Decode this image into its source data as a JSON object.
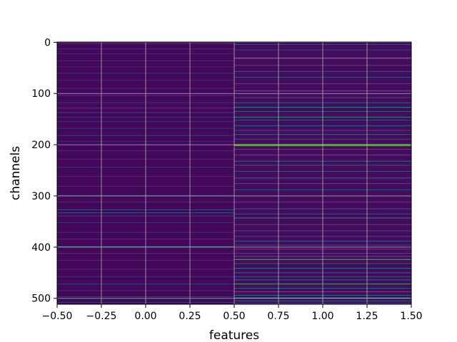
{
  "chart_data": {
    "type": "heatmap",
    "xlabel": "features",
    "ylabel": "channels",
    "xlim": [
      -0.5,
      1.5
    ],
    "ylim": [
      511.5,
      -0.5
    ],
    "rows": 512,
    "columns": [
      0,
      1
    ],
    "xticks": [
      -0.5,
      -0.25,
      0.0,
      0.25,
      0.5,
      0.75,
      1.0,
      1.25,
      1.5
    ],
    "xtick_labels": [
      "−0.50",
      "−0.25",
      "0.00",
      "0.25",
      "0.50",
      "0.75",
      "1.00",
      "1.25",
      "1.50"
    ],
    "yticks": [
      0,
      100,
      200,
      300,
      400,
      500
    ],
    "ytick_labels": [
      "0",
      "100",
      "200",
      "300",
      "400",
      "500"
    ],
    "grid": true,
    "colormap": "viridis",
    "colormap_stops": [
      "#440154",
      "#472d7b",
      "#3b528b",
      "#2c728e",
      "#21918c",
      "#28ae80",
      "#5ec962",
      "#addc30",
      "#fde725"
    ],
    "base_color": "#440154",
    "column_base_levels": [
      0.02,
      0.03
    ],
    "highlighted_rows": {
      "feature_0": [
        {
          "row": 3,
          "level": 0.18
        },
        {
          "row": 13,
          "level": 0.15
        },
        {
          "row": 22,
          "level": 0.14
        },
        {
          "row": 36,
          "level": 0.16
        },
        {
          "row": 48,
          "level": 0.13
        },
        {
          "row": 60,
          "level": 0.15
        },
        {
          "row": 74,
          "level": 0.12
        },
        {
          "row": 90,
          "level": 0.14
        },
        {
          "row": 104,
          "level": 0.2
        },
        {
          "row": 118,
          "level": 0.17
        },
        {
          "row": 128,
          "level": 0.22
        },
        {
          "row": 137,
          "level": 0.25
        },
        {
          "row": 146,
          "level": 0.18
        },
        {
          "row": 155,
          "level": 0.16
        },
        {
          "row": 168,
          "level": 0.2
        },
        {
          "row": 182,
          "level": 0.22
        },
        {
          "row": 194,
          "level": 0.18
        },
        {
          "row": 212,
          "level": 0.2
        },
        {
          "row": 228,
          "level": 0.15
        },
        {
          "row": 244,
          "level": 0.17
        },
        {
          "row": 262,
          "level": 0.14
        },
        {
          "row": 281,
          "level": 0.15
        },
        {
          "row": 299,
          "level": 0.24
        },
        {
          "row": 312,
          "level": 0.18
        },
        {
          "row": 327,
          "level": 0.28
        },
        {
          "row": 333,
          "level": 0.3
        },
        {
          "row": 339,
          "level": 0.25
        },
        {
          "row": 352,
          "level": 0.16
        },
        {
          "row": 371,
          "level": 0.2
        },
        {
          "row": 384,
          "level": 0.18
        },
        {
          "row": 399,
          "level": 0.4
        },
        {
          "row": 412,
          "level": 0.2
        },
        {
          "row": 426,
          "level": 0.16
        },
        {
          "row": 443,
          "level": 0.18
        },
        {
          "row": 458,
          "level": 0.15
        },
        {
          "row": 472,
          "level": 0.22
        },
        {
          "row": 485,
          "level": 0.17
        },
        {
          "row": 497,
          "level": 0.2
        },
        {
          "row": 508,
          "level": 0.18
        }
      ],
      "feature_1": [
        {
          "row": 4,
          "level": 0.3
        },
        {
          "row": 15,
          "level": 0.25
        },
        {
          "row": 31,
          "level": 0.75
        },
        {
          "row": 45,
          "level": 0.3
        },
        {
          "row": 57,
          "level": 0.25
        },
        {
          "row": 68,
          "level": 0.3
        },
        {
          "row": 81,
          "level": 0.35
        },
        {
          "row": 95,
          "level": 0.5
        },
        {
          "row": 108,
          "level": 0.3
        },
        {
          "row": 118,
          "level": 0.35
        },
        {
          "row": 127,
          "level": 0.55
        },
        {
          "row": 135,
          "level": 0.3
        },
        {
          "row": 146,
          "level": 0.6
        },
        {
          "row": 152,
          "level": 0.3
        },
        {
          "row": 163,
          "level": 0.35
        },
        {
          "row": 172,
          "level": 0.3
        },
        {
          "row": 180,
          "level": 0.4
        },
        {
          "row": 189,
          "level": 0.3
        },
        {
          "row": 199,
          "level": 0.7
        },
        {
          "row": 202,
          "level": 0.85
        },
        {
          "row": 209,
          "level": 0.35
        },
        {
          "row": 220,
          "level": 0.4
        },
        {
          "row": 232,
          "level": 0.45
        },
        {
          "row": 240,
          "level": 0.35
        },
        {
          "row": 252,
          "level": 0.3
        },
        {
          "row": 265,
          "level": 0.45
        },
        {
          "row": 276,
          "level": 0.35
        },
        {
          "row": 288,
          "level": 0.3
        },
        {
          "row": 300,
          "level": 0.35
        },
        {
          "row": 312,
          "level": 0.3
        },
        {
          "row": 325,
          "level": 0.35
        },
        {
          "row": 335,
          "level": 0.3
        },
        {
          "row": 343,
          "level": 0.55
        },
        {
          "row": 356,
          "level": 0.3
        },
        {
          "row": 368,
          "level": 0.35
        },
        {
          "row": 379,
          "level": 0.3
        },
        {
          "row": 388,
          "level": 0.35
        },
        {
          "row": 396,
          "level": 0.3
        },
        {
          "row": 404,
          "level": 0.35
        },
        {
          "row": 412,
          "level": 0.3
        },
        {
          "row": 418,
          "level": 0.4
        },
        {
          "row": 424,
          "level": 0.75
        },
        {
          "row": 432,
          "level": 0.35
        },
        {
          "row": 441,
          "level": 0.45
        },
        {
          "row": 450,
          "level": 0.35
        },
        {
          "row": 458,
          "level": 0.3
        },
        {
          "row": 464,
          "level": 0.4
        },
        {
          "row": 472,
          "level": 0.7
        },
        {
          "row": 480,
          "level": 0.35
        },
        {
          "row": 487,
          "level": 0.4
        },
        {
          "row": 494,
          "level": 0.45
        },
        {
          "row": 499,
          "level": 0.6
        },
        {
          "row": 505,
          "level": 0.35
        },
        {
          "row": 510,
          "level": 0.3
        }
      ]
    }
  }
}
